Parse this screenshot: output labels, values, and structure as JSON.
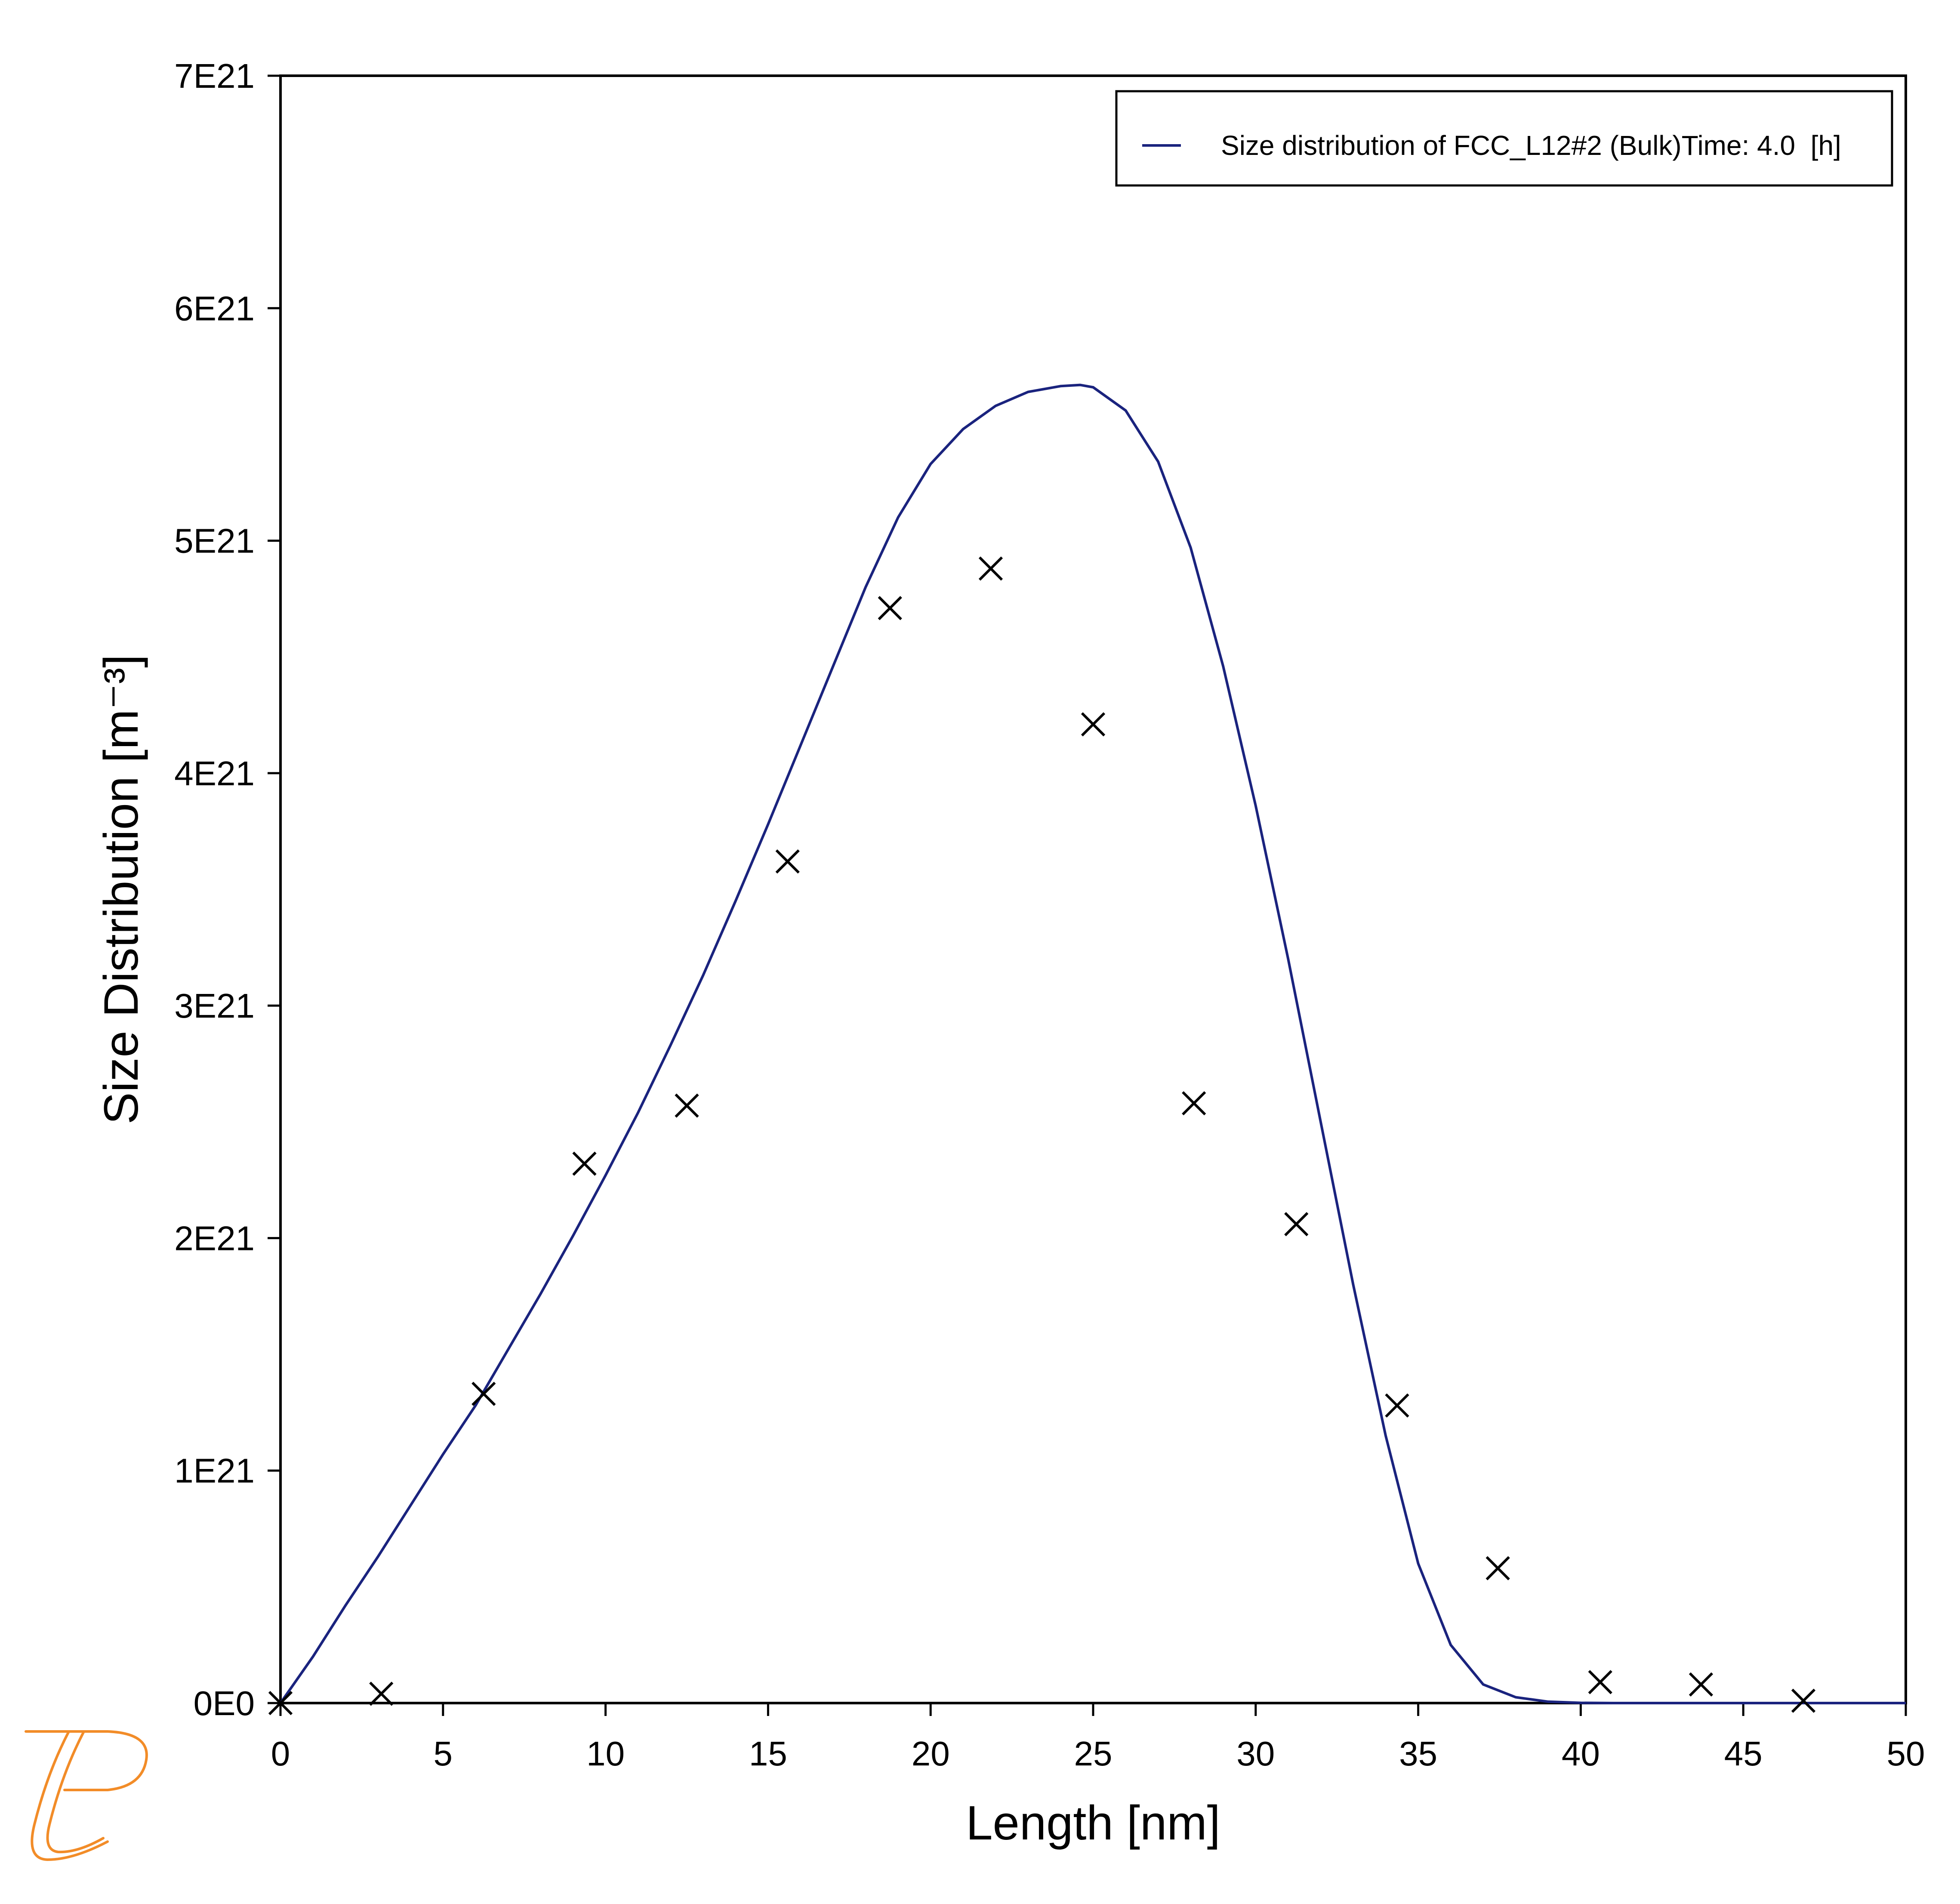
{
  "chart_data": {
    "type": "line",
    "xlabel": "Length [nm]",
    "ylabel": "Size Distribution [m⁻³]",
    "xlim": [
      0,
      50
    ],
    "ylim": [
      0,
      7e+21
    ],
    "x_ticks": [
      0,
      5,
      10,
      15,
      20,
      25,
      30,
      35,
      40,
      45,
      50
    ],
    "x_tick_labels": [
      "0",
      "5",
      "10",
      "15",
      "20",
      "25",
      "30",
      "35",
      "40",
      "45",
      "50"
    ],
    "y_ticks": [
      0,
      1e+21,
      2e+21,
      3e+21,
      4e+21,
      5e+21,
      6e+21,
      7e+21
    ],
    "y_tick_labels": [
      "0E0",
      "1E21",
      "2E21",
      "3E21",
      "4E21",
      "5E21",
      "6E21",
      "7E21"
    ],
    "grid": false,
    "legend_position": "top-right",
    "series": [
      {
        "name": "Size distribution of FCC_L12#2 (Bulk)Time: 4.0  [h]",
        "kind": "line",
        "color": "#1a237e",
        "x": [
          0,
          1,
          2,
          3,
          4,
          5,
          6,
          7,
          8,
          9,
          10,
          11,
          12,
          13,
          14,
          15,
          16,
          17,
          18,
          19,
          20,
          21,
          22,
          23,
          24,
          24.6,
          25,
          26,
          27,
          28,
          29,
          30,
          31,
          32,
          33,
          34,
          35,
          36,
          37,
          38,
          39,
          40,
          41,
          42,
          43,
          44,
          45,
          46,
          47,
          48,
          49,
          50
        ],
        "y": [
          0,
          2e+20,
          4.2e+20,
          6.3e+20,
          8.5e+20,
          1.07e+21,
          1.28e+21,
          1.52e+21,
          1.76e+21,
          2.01e+21,
          2.27e+21,
          2.54e+21,
          2.83e+21,
          3.13e+21,
          3.45e+21,
          3.78e+21,
          4.12e+21,
          4.46e+21,
          4.8e+21,
          5.1e+21,
          5.33e+21,
          5.48e+21,
          5.58e+21,
          5.64e+21,
          5.665e+21,
          5.67e+21,
          5.66e+21,
          5.56e+21,
          5.34e+21,
          4.97e+21,
          4.46e+21,
          3.86e+21,
          3.2e+21,
          2.5e+21,
          1.8e+21,
          1.15e+21,
          6e+20,
          2.5e+20,
          8e+19,
          2.5e+19,
          6e+18,
          1e+18,
          0,
          0,
          0,
          0,
          0,
          0,
          0,
          0,
          0,
          0
        ]
      },
      {
        "name": "",
        "kind": "scatter",
        "marker": "x",
        "color": "#000000",
        "x": [
          0,
          3.1,
          6.25,
          9.35,
          12.5,
          15.6,
          18.75,
          21.85,
          25.0,
          28.1,
          31.25,
          34.35,
          37.45,
          40.6,
          43.7,
          46.85
        ],
        "y": [
          0,
          4e+19,
          1.33e+21,
          2.32e+21,
          2.57e+21,
          3.62e+21,
          4.71e+21,
          4.88e+21,
          4.21e+21,
          2.58e+21,
          2.06e+21,
          1.28e+21,
          5.8e+20,
          9e+19,
          8e+19,
          1e+19
        ]
      }
    ]
  }
}
